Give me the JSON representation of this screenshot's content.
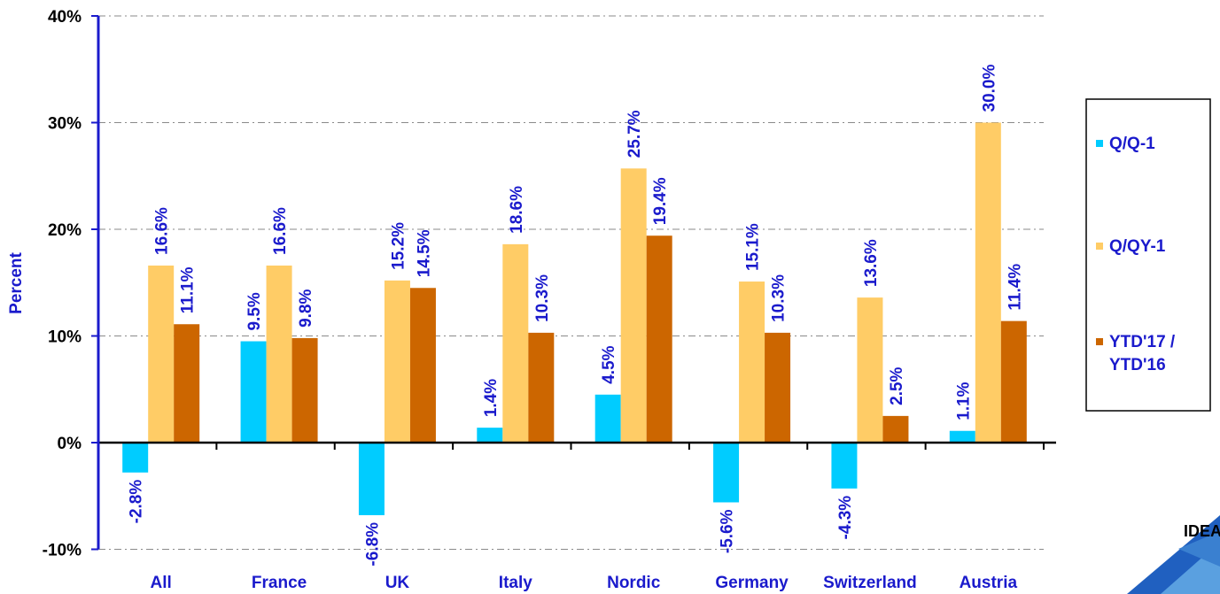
{
  "chart_data": {
    "type": "bar",
    "title": "",
    "xlabel": "",
    "ylabel": "Percent",
    "ylim": [
      -10,
      40
    ],
    "yticks": [
      -10,
      0,
      10,
      20,
      30,
      40
    ],
    "ytick_labels": [
      "-10%",
      "0%",
      "10%",
      "20%",
      "30%",
      "40%"
    ],
    "grid": "horizontal dash-dot",
    "legend_position": "right",
    "categories": [
      "All",
      "France",
      "UK",
      "Italy",
      "Nordic",
      "Germany",
      "Switzerland",
      "Austria"
    ],
    "series": [
      {
        "name": "Q/Q-1",
        "color": "#00ccff",
        "values": [
          -2.8,
          9.5,
          -6.8,
          1.4,
          4.5,
          -5.6,
          -4.3,
          1.1
        ],
        "labels": [
          "-2.8%",
          "9.5%",
          "-6.8%",
          "1.4%",
          "4.5%",
          "-5.6%",
          "-4.3%",
          "1.1%"
        ]
      },
      {
        "name": "Q/QY-1",
        "color": "#ffcc66",
        "values": [
          16.6,
          16.6,
          15.2,
          18.6,
          25.7,
          15.1,
          13.6,
          30.0
        ],
        "labels": [
          null,
          "16.6%",
          "15.2%",
          "18.6%",
          "25.7%",
          "15.1%",
          "13.6%",
          "30.0%"
        ]
      },
      {
        "name_lines": [
          "YTD'17 /",
          "YTD'16"
        ],
        "color": "#cc6600",
        "values": [
          11.1,
          9.8,
          14.5,
          10.3,
          19.4,
          10.3,
          2.5,
          11.4
        ],
        "labels": [
          "11.1%",
          "9.8%",
          "14.5%",
          "10.3%",
          "19.4%",
          "10.3%",
          "2.5%",
          "11.4%"
        ]
      }
    ],
    "extra_labels": [
      {
        "text": "16.6%",
        "category": 0,
        "series": 1
      }
    ]
  },
  "logo": {
    "text": "IDEA"
  }
}
